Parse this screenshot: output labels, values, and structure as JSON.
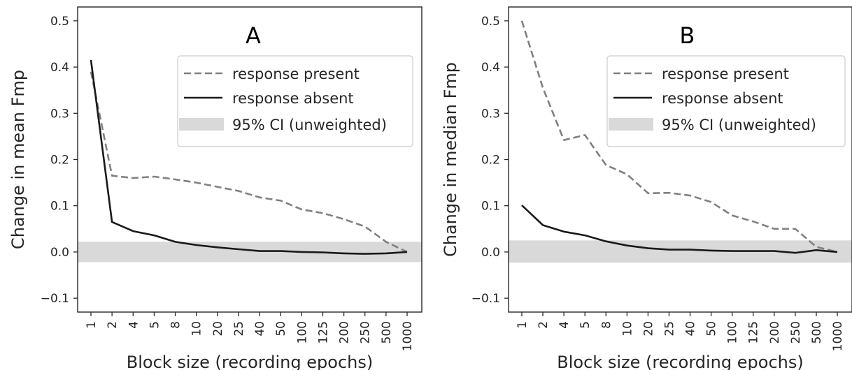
{
  "chart_data": [
    {
      "type": "line",
      "title": "A",
      "xlabel": "Block size (recording epochs)",
      "ylabel": "Change in mean Fmp",
      "categories": [
        "1",
        "2",
        "4",
        "5",
        "8",
        "10",
        "20",
        "25",
        "40",
        "50",
        "100",
        "125",
        "200",
        "250",
        "500",
        "1000"
      ],
      "ylim": [
        -0.13,
        0.53
      ],
      "yticks": [
        "0.5",
        "0.4",
        "0.3",
        "0.2",
        "0.1",
        "0.0",
        "−0.1"
      ],
      "ytick_values": [
        0.5,
        0.4,
        0.3,
        0.2,
        0.1,
        0.0,
        -0.1
      ],
      "ci_band": [
        -0.022,
        0.022
      ],
      "grid": false,
      "legend_position": "upper right",
      "legend": [
        "response present",
        "response absent",
        "95% CI (unweighted)"
      ],
      "series": [
        {
          "name": "response present",
          "style": "dashed",
          "color": "#808080",
          "values": [
            0.39,
            0.165,
            0.16,
            0.163,
            0.157,
            0.15,
            0.141,
            0.132,
            0.118,
            0.111,
            0.092,
            0.084,
            0.071,
            0.055,
            0.022,
            0.0
          ]
        },
        {
          "name": "response absent",
          "style": "solid",
          "color": "#1a1a1a",
          "values": [
            0.415,
            0.065,
            0.045,
            0.036,
            0.022,
            0.015,
            0.01,
            0.006,
            0.002,
            0.002,
            0.0,
            -0.001,
            -0.003,
            -0.004,
            -0.003,
            0.0
          ]
        }
      ]
    },
    {
      "type": "line",
      "title": "B",
      "xlabel": "Block size (recording epochs)",
      "ylabel": "Change in median Fmp",
      "categories": [
        "1",
        "2",
        "4",
        "5",
        "8",
        "10",
        "20",
        "25",
        "40",
        "50",
        "100",
        "125",
        "200",
        "250",
        "500",
        "1000"
      ],
      "ylim": [
        -0.13,
        0.53
      ],
      "yticks": [
        "0.5",
        "0.4",
        "0.3",
        "0.2",
        "0.1",
        "0.0",
        "−0.1"
      ],
      "ytick_values": [
        0.5,
        0.4,
        0.3,
        0.2,
        0.1,
        0.0,
        -0.1
      ],
      "ci_band": [
        -0.023,
        0.025
      ],
      "grid": false,
      "legend_position": "upper right",
      "legend": [
        "response present",
        "response absent",
        "95% CI (unweighted)"
      ],
      "series": [
        {
          "name": "response present",
          "style": "dashed",
          "color": "#808080",
          "values": [
            0.5,
            0.355,
            0.242,
            0.253,
            0.188,
            0.168,
            0.127,
            0.128,
            0.122,
            0.108,
            0.079,
            0.066,
            0.05,
            0.05,
            0.011,
            0.0
          ]
        },
        {
          "name": "response absent",
          "style": "solid",
          "color": "#1a1a1a",
          "values": [
            0.101,
            0.058,
            0.044,
            0.036,
            0.023,
            0.014,
            0.008,
            0.005,
            0.005,
            0.003,
            0.002,
            0.002,
            0.002,
            -0.002,
            0.004,
            0.0
          ]
        }
      ]
    }
  ],
  "colors": {
    "ci_band": "#d9d9d9",
    "axis": "#262626",
    "present": "#808080",
    "absent": "#1a1a1a"
  }
}
